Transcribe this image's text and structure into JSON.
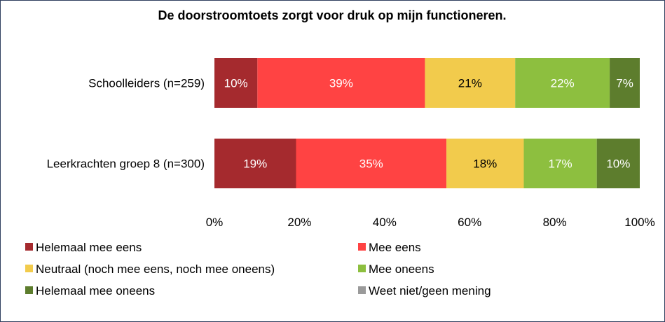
{
  "chart_data": {
    "type": "bar",
    "orientation": "horizontal",
    "stacked": "percent",
    "title": "De doorstroomtoets zorgt voor druk op mijn functioneren.",
    "categories": [
      "Schoolleiders (n=259)",
      "Leerkrachten groep 8 (n=300)"
    ],
    "series": [
      {
        "name": "Helemaal mee eens",
        "color": "#a52a2e",
        "values": [
          10,
          19
        ],
        "labels": [
          "10%",
          "19%"
        ],
        "label_color": "#ffffff"
      },
      {
        "name": "Mee eens",
        "color": "#ff4343",
        "values": [
          39,
          35
        ],
        "labels": [
          "39%",
          "35%"
        ],
        "label_color": "#ffffff"
      },
      {
        "name": "Neutraal (noch mee eens, noch mee oneens)",
        "color": "#f2cb4c",
        "values": [
          21,
          18
        ],
        "labels": [
          "21%",
          "18%"
        ],
        "label_color": "#000000"
      },
      {
        "name": "Mee oneens",
        "color": "#8dbf3f",
        "values": [
          22,
          17
        ],
        "labels": [
          "22%",
          "17%"
        ],
        "label_color": "#ffffff"
      },
      {
        "name": "Helemaal mee oneens",
        "color": "#5d7d2d",
        "values": [
          7,
          10
        ],
        "labels": [
          "7%",
          "10%"
        ],
        "label_color": "#ffffff"
      },
      {
        "name": "Weet niet/geen mening",
        "color": "#9a9a9a",
        "values": [
          0,
          0
        ],
        "labels": [
          "",
          ""
        ],
        "label_color": "#ffffff"
      }
    ],
    "xticks": [
      "0%",
      "20%",
      "40%",
      "60%",
      "80%",
      "100%"
    ],
    "xlim": [
      0,
      100
    ],
    "grid": false,
    "legend_position": "bottom"
  }
}
